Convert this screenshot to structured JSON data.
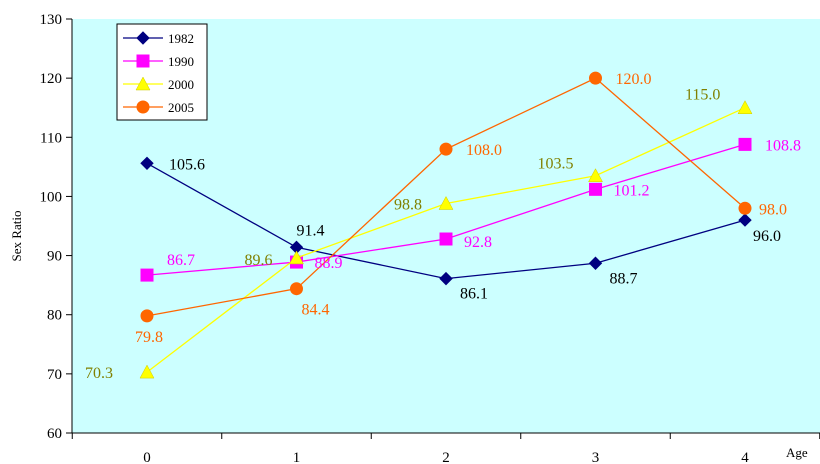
{
  "chart_data": {
    "type": "line",
    "title": "",
    "xlabel": "Age",
    "ylabel": "Sex Ratio",
    "x": [
      0,
      1,
      2,
      3,
      4
    ],
    "ylim": [
      60,
      130
    ],
    "yticks": [
      60,
      70,
      80,
      90,
      100,
      110,
      120,
      130
    ],
    "grid": false,
    "legend_position": "top-left",
    "plot_background": "#ccffff",
    "series": [
      {
        "name": "1982",
        "color": "#000080",
        "marker": "diamond",
        "values": [
          105.6,
          91.4,
          86.1,
          88.7,
          96.0
        ],
        "labels": [
          "105.6",
          "91.4",
          "86.1",
          "88.7",
          "96.0"
        ],
        "label_color": "#000000"
      },
      {
        "name": "1990",
        "color": "#ff00ff",
        "marker": "square",
        "values": [
          86.7,
          88.9,
          92.8,
          101.2,
          108.8
        ],
        "labels": [
          "86.7",
          "88.9",
          "92.8",
          "101.2",
          "108.8"
        ],
        "label_color": "#ff00ff"
      },
      {
        "name": "2000",
        "color": "#ffff00",
        "marker": "triangle",
        "values": [
          70.3,
          89.6,
          98.8,
          103.5,
          115.0
        ],
        "labels": [
          "70.3",
          "89.6",
          "98.8",
          "103.5",
          "115.0"
        ],
        "label_color": "#808000"
      },
      {
        "name": "2005",
        "color": "#ff6600",
        "marker": "circle",
        "values": [
          79.8,
          84.4,
          108.0,
          120.0,
          98.0
        ],
        "labels": [
          "79.8",
          "84.4",
          "108.0",
          "120.0",
          "98.0"
        ],
        "label_color": "#ff6600"
      }
    ]
  }
}
